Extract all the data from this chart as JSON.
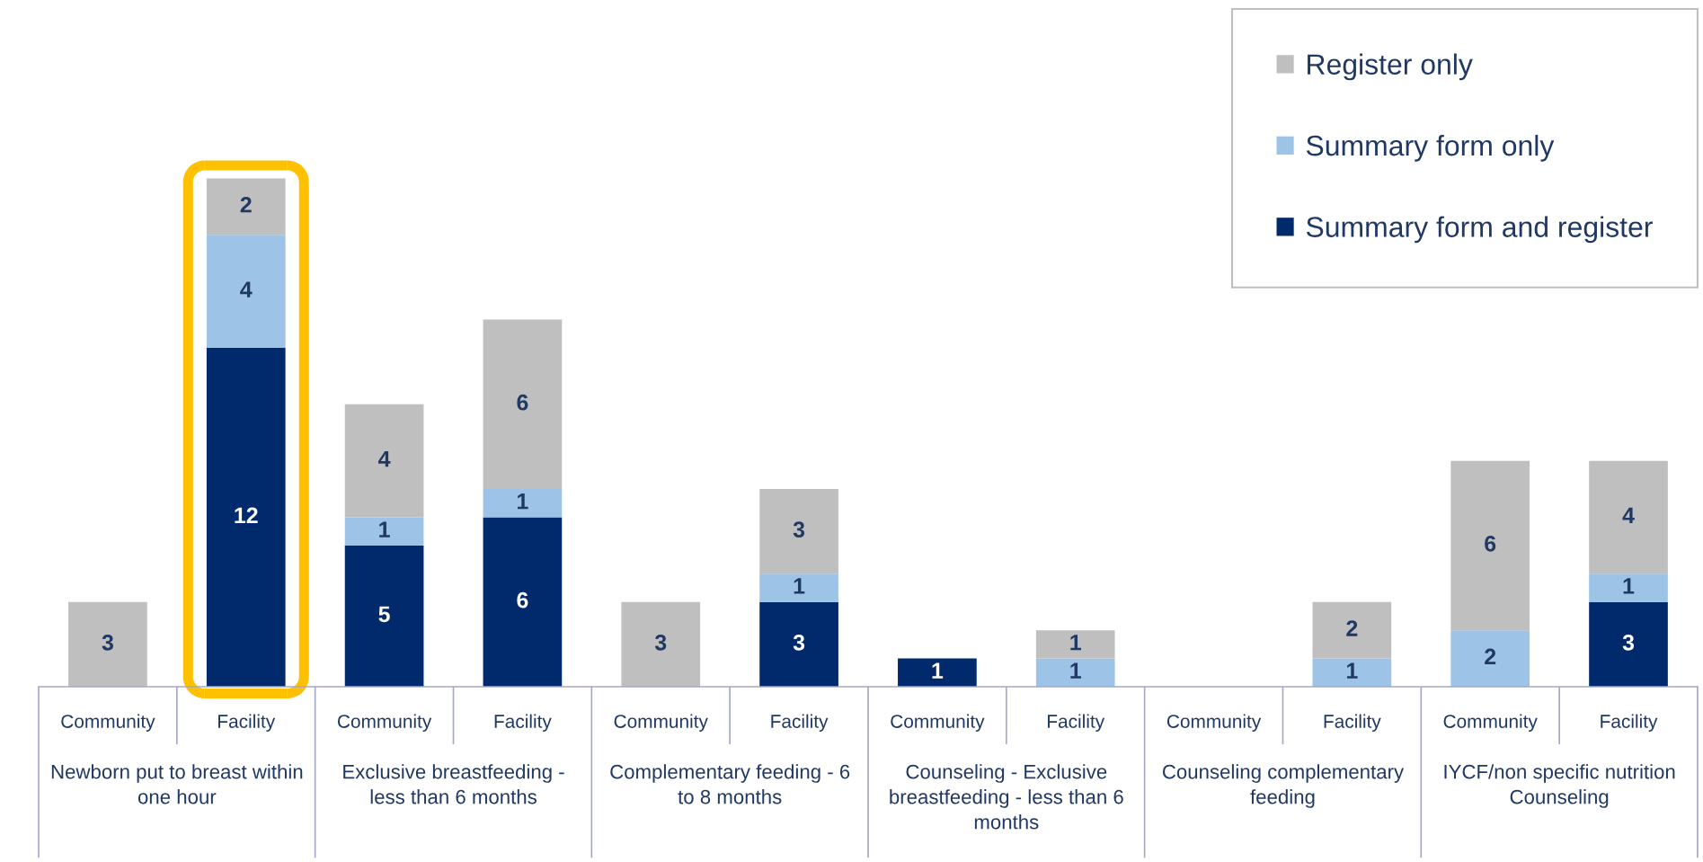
{
  "chart_data": {
    "type": "bar",
    "stacked": true,
    "data_labels": true,
    "legend": "top right",
    "tick_labels": "x",
    "ylim": [
      0,
      24
    ],
    "categories": [
      "Community",
      "Facility",
      "Community",
      "Facility",
      "Community",
      "Facility",
      "Community",
      "Facility",
      "Community",
      "Facility",
      "Community",
      "Facility"
    ],
    "series": [
      {
        "name": "Summary form and register",
        "color": "#002a6c",
        "values": [
          null,
          12,
          5,
          6,
          null,
          3,
          1,
          null,
          null,
          null,
          null,
          3
        ]
      },
      {
        "name": "Summary form only",
        "color": "#9dc3e6",
        "values": [
          null,
          4,
          1,
          1,
          null,
          1,
          null,
          1,
          null,
          1,
          2,
          1
        ]
      },
      {
        "name": "Register only",
        "color": "#bfbfbf",
        "values": [
          3,
          2,
          4,
          6,
          3,
          3,
          null,
          1,
          null,
          2,
          6,
          4
        ]
      }
    ],
    "annotations": [
      "Newborn put to breast within one hour",
      "Exclusive breastfeeding - less than 6 months",
      "Complementary feeding - 6 to 8 months",
      "Counseling - Exclusive breastfeeding - less than 6 months",
      "Counseling complementary feeding",
      "IYCF/non specific nutrition Counseling"
    ]
  }
}
